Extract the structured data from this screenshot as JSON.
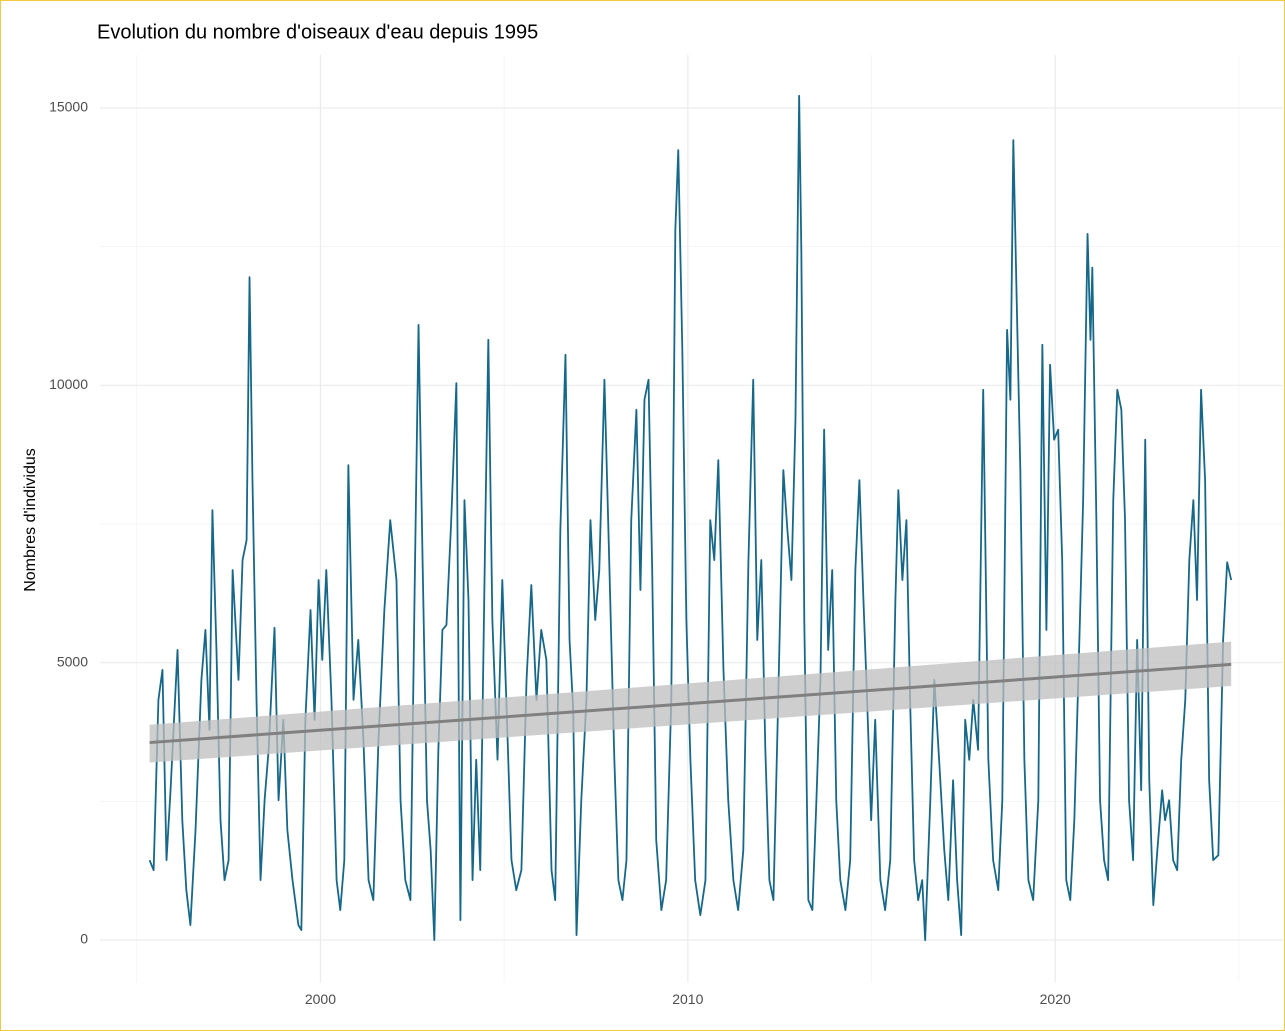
{
  "chart_data": {
    "type": "line",
    "title": "Evolution du nombre d'oiseaux d'eau depuis 1995",
    "y_label": "Nombres d'individus",
    "xlim": [
      1994.0,
      2026.2
    ],
    "ylim": [
      -760,
      15960
    ],
    "xticks": [
      2000,
      2010,
      2020
    ],
    "xminor": [
      1995,
      2005,
      2015,
      2025
    ],
    "yticks": [
      0,
      5000,
      10000,
      15000
    ],
    "yminor": [
      2500,
      7500,
      12500
    ],
    "grid": true,
    "x": [
      1995.35,
      1995.46,
      1995.59,
      1995.7,
      1995.81,
      1995.92,
      1996.11,
      1996.24,
      1996.35,
      1996.46,
      1996.6,
      1996.76,
      1996.87,
      1996.98,
      1997.06,
      1997.17,
      1997.28,
      1997.39,
      1997.5,
      1997.61,
      1997.77,
      1997.88,
      1997.99,
      1998.07,
      1998.15,
      1998.26,
      1998.37,
      1998.48,
      1998.59,
      1998.75,
      1998.86,
      1998.99,
      1999.1,
      1999.24,
      1999.4,
      1999.48,
      1999.59,
      1999.73,
      1999.84,
      1999.95,
      2000.05,
      2000.16,
      2000.3,
      2000.44,
      2000.54,
      2000.65,
      2000.76,
      2000.9,
      2001.03,
      2001.17,
      2001.31,
      2001.44,
      2001.58,
      2001.74,
      2001.9,
      2002.07,
      2002.18,
      2002.31,
      2002.45,
      2002.56,
      2002.67,
      2002.78,
      2002.9,
      2003.0,
      2003.1,
      2003.21,
      2003.32,
      2003.43,
      2003.56,
      2003.7,
      2003.81,
      2003.92,
      2004.03,
      2004.14,
      2004.24,
      2004.35,
      2004.49,
      2004.57,
      2004.68,
      2004.82,
      2004.95,
      2005.06,
      2005.2,
      2005.33,
      2005.47,
      2005.61,
      2005.74,
      2005.88,
      2006.01,
      2006.15,
      2006.29,
      2006.39,
      2006.53,
      2006.67,
      2006.78,
      2006.88,
      2006.97,
      2007.1,
      2007.24,
      2007.35,
      2007.48,
      2007.59,
      2007.73,
      2007.86,
      2008.0,
      2008.11,
      2008.22,
      2008.33,
      2008.46,
      2008.6,
      2008.71,
      2008.82,
      2008.93,
      2009.03,
      2009.14,
      2009.28,
      2009.41,
      2009.55,
      2009.66,
      2009.74,
      2009.85,
      2009.96,
      2010.07,
      2010.2,
      2010.34,
      2010.48,
      2010.61,
      2010.72,
      2010.83,
      2010.97,
      2011.1,
      2011.24,
      2011.37,
      2011.51,
      2011.65,
      2011.78,
      2011.89,
      2012.0,
      2012.11,
      2012.22,
      2012.33,
      2012.46,
      2012.6,
      2012.71,
      2012.82,
      2012.93,
      2013.03,
      2013.09,
      2013.17,
      2013.28,
      2013.39,
      2013.5,
      2013.61,
      2013.71,
      2013.82,
      2013.93,
      2014.04,
      2014.15,
      2014.29,
      2014.42,
      2014.56,
      2014.67,
      2014.78,
      2014.88,
      2014.99,
      2015.1,
      2015.24,
      2015.37,
      2015.51,
      2015.65,
      2015.73,
      2015.84,
      2015.95,
      2016.05,
      2016.16,
      2016.27,
      2016.38,
      2016.46,
      2016.6,
      2016.71,
      2016.84,
      2016.98,
      2017.09,
      2017.22,
      2017.33,
      2017.44,
      2017.55,
      2017.66,
      2017.77,
      2017.9,
      2018.04,
      2018.18,
      2018.31,
      2018.45,
      2018.56,
      2018.69,
      2018.78,
      2018.86,
      2018.94,
      2019.05,
      2019.16,
      2019.27,
      2019.4,
      2019.54,
      2019.65,
      2019.76,
      2019.86,
      2019.97,
      2020.08,
      2020.19,
      2020.3,
      2020.41,
      2020.52,
      2020.65,
      2020.76,
      2020.88,
      2020.96,
      2021.01,
      2021.12,
      2021.22,
      2021.33,
      2021.44,
      2021.58,
      2021.69,
      2021.8,
      2021.9,
      2022.01,
      2022.12,
      2022.23,
      2022.34,
      2022.45,
      2022.56,
      2022.67,
      2022.78,
      2022.91,
      2022.99,
      2023.1,
      2023.21,
      2023.32,
      2023.43,
      2023.54,
      2023.65,
      2023.76,
      2023.86,
      2023.97,
      2024.08,
      2024.19,
      2024.3,
      2024.44,
      2024.57,
      2024.68,
      2024.79
    ],
    "series": [
      {
        "color": "#15688a",
        "values": [
          1440,
          1260,
          4330,
          4870,
          1440,
          2700,
          5230,
          2160,
          900,
          270,
          1980,
          4690,
          5590,
          3790,
          7750,
          5230,
          2160,
          1080,
          1440,
          6670,
          4690,
          6850,
          7210,
          11950,
          8290,
          4330,
          1080,
          2520,
          3430,
          5630,
          2520,
          3970,
          1980,
          1080,
          270,
          180,
          3970,
          5950,
          3970,
          6490,
          5050,
          6670,
          4330,
          1080,
          540,
          1440,
          8560,
          4330,
          5410,
          3610,
          1080,
          720,
          3610,
          5950,
          7570,
          6490,
          2520,
          1080,
          720,
          6130,
          11090,
          6850,
          2520,
          1620,
          0,
          3430,
          5590,
          5680,
          7570,
          10040,
          360,
          7930,
          6130,
          1080,
          3250,
          1260,
          7570,
          10820,
          5770,
          3250,
          6490,
          4330,
          1440,
          900,
          1260,
          4690,
          6400,
          4330,
          5590,
          5050,
          1260,
          720,
          7390,
          10550,
          5410,
          4150,
          90,
          2520,
          4330,
          7570,
          5770,
          6670,
          10100,
          6850,
          3250,
          1080,
          720,
          1440,
          7570,
          9560,
          6310,
          9740,
          10100,
          6670,
          1800,
          540,
          1080,
          4330,
          12800,
          14240,
          10640,
          5770,
          3250,
          1080,
          450,
          1080,
          7570,
          6850,
          8650,
          4870,
          2520,
          1080,
          540,
          1620,
          6850,
          10100,
          5410,
          6850,
          3430,
          1080,
          720,
          4330,
          8470,
          7390,
          6490,
          9380,
          15220,
          12400,
          5770,
          720,
          540,
          2520,
          4690,
          9200,
          5230,
          6670,
          2520,
          1080,
          540,
          1440,
          6670,
          8290,
          6130,
          4330,
          2160,
          3970,
          1080,
          540,
          1440,
          6130,
          8110,
          6490,
          7570,
          4330,
          1440,
          720,
          1080,
          0,
          2520,
          4690,
          3250,
          1620,
          720,
          2880,
          1080,
          90,
          3970,
          3250,
          4330,
          3430,
          9920,
          3250,
          1440,
          900,
          2520,
          11000,
          9740,
          14420,
          11900,
          8470,
          3250,
          1080,
          720,
          2520,
          10730,
          5590,
          10370,
          9020,
          9200,
          6850,
          1080,
          720,
          2160,
          5230,
          7930,
          12730,
          10820,
          12120,
          7570,
          2520,
          1440,
          1080,
          7930,
          9920,
          9560,
          7570,
          2520,
          1440,
          5410,
          2700,
          9020,
          2880,
          630,
          1620,
          2700,
          2160,
          2520,
          1440,
          1260,
          3250,
          4330,
          6850,
          7930,
          6130,
          9920,
          8290,
          2880,
          1440,
          1530,
          5410,
          6810,
          6490
        ]
      }
    ],
    "trend": {
      "x": [
        1995.35,
        2024.79
      ],
      "values": [
        3560,
        4970
      ],
      "lower": [
        3200,
        4580
      ],
      "upper": [
        3880,
        5380
      ],
      "color": "#808080",
      "band_color": "#bdbdbd"
    }
  }
}
